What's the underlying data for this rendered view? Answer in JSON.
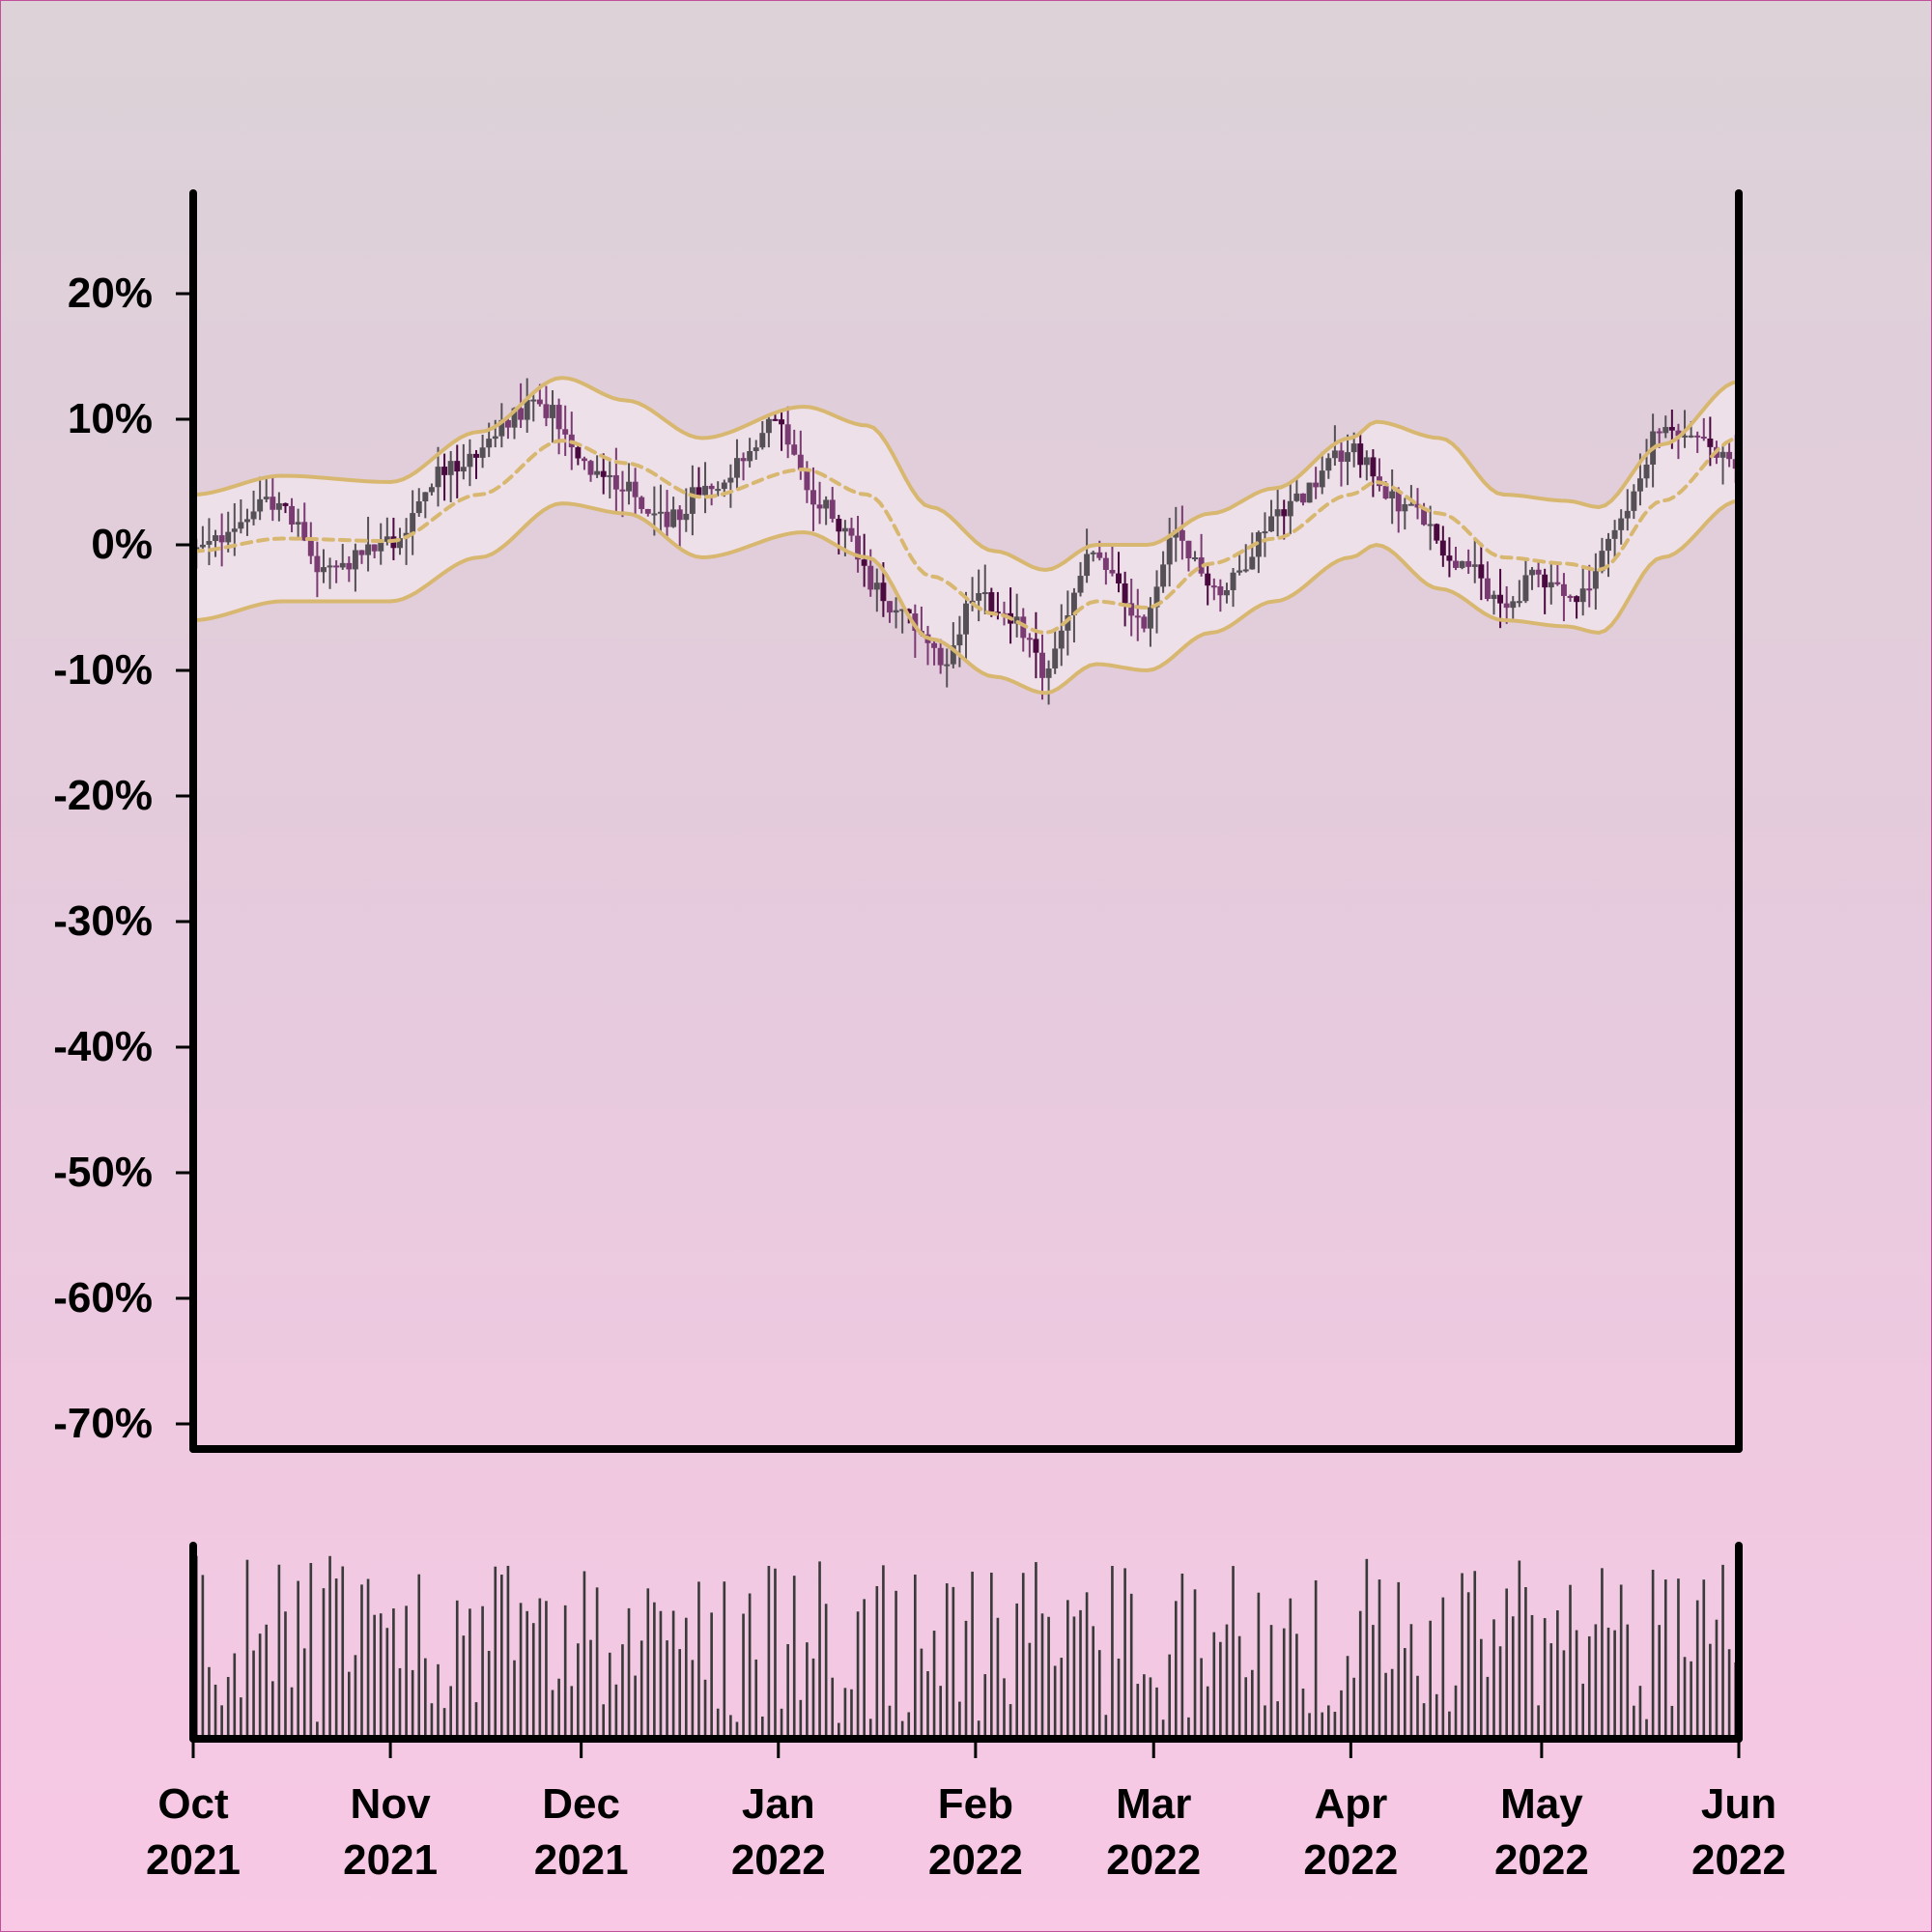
{
  "chart_data": {
    "type": "candlestick",
    "title": "",
    "xlabel": "",
    "ylabel": "",
    "y_unit": "%",
    "ylim": [
      -72,
      28
    ],
    "yticks": [
      20,
      10,
      0,
      -10,
      -20,
      -30,
      -40,
      -50,
      -60,
      -70
    ],
    "ytick_labels": [
      "20%",
      "10%",
      "0%",
      "-10%",
      "-20%",
      "-30%",
      "-40%",
      "-50%",
      "-60%",
      "-70%"
    ],
    "x_range": [
      "2021-10-01",
      "2022-06-01"
    ],
    "xticks": [
      {
        "date": "2021-10-01",
        "month": "Oct",
        "year": "2021"
      },
      {
        "date": "2021-11-01",
        "month": "Nov",
        "year": "2021"
      },
      {
        "date": "2021-12-01",
        "month": "Dec",
        "year": "2021"
      },
      {
        "date": "2022-01-01",
        "month": "Jan",
        "year": "2022"
      },
      {
        "date": "2022-02-01",
        "month": "Feb",
        "year": "2022"
      },
      {
        "date": "2022-03-01",
        "month": "Mar",
        "year": "2022"
      },
      {
        "date": "2022-04-01",
        "month": "Apr",
        "year": "2022"
      },
      {
        "date": "2022-05-01",
        "month": "May",
        "year": "2022"
      },
      {
        "date": "2022-06-01",
        "month": "Jun",
        "year": "2022"
      }
    ],
    "price_anchors": [
      {
        "date": "2021-10-01",
        "value": -0.5
      },
      {
        "date": "2021-10-15",
        "value": 3.5
      },
      {
        "date": "2021-10-22",
        "value": -2.0
      },
      {
        "date": "2021-11-01",
        "value": 0.0
      },
      {
        "date": "2021-11-10",
        "value": 6.0
      },
      {
        "date": "2021-11-25",
        "value": 11.0
      },
      {
        "date": "2021-12-05",
        "value": 5.5
      },
      {
        "date": "2021-12-15",
        "value": 2.0
      },
      {
        "date": "2021-12-22",
        "value": 5.0
      },
      {
        "date": "2022-01-01",
        "value": 9.5
      },
      {
        "date": "2022-01-08",
        "value": 3.0
      },
      {
        "date": "2022-01-20",
        "value": -5.0
      },
      {
        "date": "2022-01-28",
        "value": -9.0
      },
      {
        "date": "2022-02-01",
        "value": -4.0
      },
      {
        "date": "2022-02-08",
        "value": -6.0
      },
      {
        "date": "2022-02-12",
        "value": -10.0
      },
      {
        "date": "2022-02-20",
        "value": -1.0
      },
      {
        "date": "2022-02-28",
        "value": -6.0
      },
      {
        "date": "2022-03-05",
        "value": 0.5
      },
      {
        "date": "2022-03-12",
        "value": -3.5
      },
      {
        "date": "2022-03-22",
        "value": 3.0
      },
      {
        "date": "2022-04-01",
        "value": 7.5
      },
      {
        "date": "2022-04-10",
        "value": 3.0
      },
      {
        "date": "2022-04-20",
        "value": -2.0
      },
      {
        "date": "2022-04-25",
        "value": -5.0
      },
      {
        "date": "2022-05-01",
        "value": -2.5
      },
      {
        "date": "2022-05-07",
        "value": -4.5
      },
      {
        "date": "2022-05-14",
        "value": 2.0
      },
      {
        "date": "2022-05-20",
        "value": 9.0
      },
      {
        "date": "2022-05-25",
        "value": 9.5
      },
      {
        "date": "2022-06-01",
        "value": 6.0
      }
    ],
    "bollinger_bands": {
      "middle_style": "dashed",
      "middle": [
        {
          "date": "2021-10-01",
          "value": -0.5
        },
        {
          "date": "2021-10-15",
          "value": 0.5
        },
        {
          "date": "2021-11-01",
          "value": 0.3
        },
        {
          "date": "2021-11-15",
          "value": 4.0
        },
        {
          "date": "2021-11-28",
          "value": 8.3
        },
        {
          "date": "2021-12-08",
          "value": 6.5
        },
        {
          "date": "2021-12-20",
          "value": 3.8
        },
        {
          "date": "2022-01-05",
          "value": 6.0
        },
        {
          "date": "2022-01-15",
          "value": 4.0
        },
        {
          "date": "2022-01-25",
          "value": -2.5
        },
        {
          "date": "2022-02-04",
          "value": -5.5
        },
        {
          "date": "2022-02-12",
          "value": -7.0
        },
        {
          "date": "2022-02-20",
          "value": -4.5
        },
        {
          "date": "2022-02-28",
          "value": -5.0
        },
        {
          "date": "2022-03-10",
          "value": -1.5
        },
        {
          "date": "2022-03-20",
          "value": 0.5
        },
        {
          "date": "2022-04-01",
          "value": 4.0
        },
        {
          "date": "2022-04-05",
          "value": 5.0
        },
        {
          "date": "2022-04-15",
          "value": 2.5
        },
        {
          "date": "2022-04-25",
          "value": -1.0
        },
        {
          "date": "2022-05-05",
          "value": -1.5
        },
        {
          "date": "2022-05-10",
          "value": -2.0
        },
        {
          "date": "2022-05-20",
          "value": 3.5
        },
        {
          "date": "2022-06-01",
          "value": 8.5
        }
      ],
      "upper": [
        {
          "date": "2021-10-01",
          "value": 4.0
        },
        {
          "date": "2021-10-15",
          "value": 5.5
        },
        {
          "date": "2021-11-01",
          "value": 5.0
        },
        {
          "date": "2021-11-15",
          "value": 9.0
        },
        {
          "date": "2021-11-28",
          "value": 13.3
        },
        {
          "date": "2021-12-08",
          "value": 11.5
        },
        {
          "date": "2021-12-20",
          "value": 8.5
        },
        {
          "date": "2022-01-05",
          "value": 11.0
        },
        {
          "date": "2022-01-15",
          "value": 9.5
        },
        {
          "date": "2022-01-25",
          "value": 3.0
        },
        {
          "date": "2022-02-04",
          "value": -0.5
        },
        {
          "date": "2022-02-12",
          "value": -2.0
        },
        {
          "date": "2022-02-20",
          "value": 0.0
        },
        {
          "date": "2022-02-28",
          "value": 0.0
        },
        {
          "date": "2022-03-10",
          "value": 2.5
        },
        {
          "date": "2022-03-20",
          "value": 4.5
        },
        {
          "date": "2022-04-01",
          "value": 8.5
        },
        {
          "date": "2022-04-05",
          "value": 9.8
        },
        {
          "date": "2022-04-15",
          "value": 8.5
        },
        {
          "date": "2022-04-25",
          "value": 4.0
        },
        {
          "date": "2022-05-05",
          "value": 3.5
        },
        {
          "date": "2022-05-10",
          "value": 3.0
        },
        {
          "date": "2022-05-20",
          "value": 8.0
        },
        {
          "date": "2022-06-01",
          "value": 13.0
        }
      ],
      "lower": [
        {
          "date": "2021-10-01",
          "value": -6.0
        },
        {
          "date": "2021-10-15",
          "value": -4.5
        },
        {
          "date": "2021-11-01",
          "value": -4.5
        },
        {
          "date": "2021-11-15",
          "value": -1.0
        },
        {
          "date": "2021-11-28",
          "value": 3.3
        },
        {
          "date": "2021-12-08",
          "value": 2.5
        },
        {
          "date": "2021-12-20",
          "value": -1.0
        },
        {
          "date": "2022-01-05",
          "value": 1.0
        },
        {
          "date": "2022-01-15",
          "value": -1.0
        },
        {
          "date": "2022-01-25",
          "value": -7.5
        },
        {
          "date": "2022-02-04",
          "value": -10.5
        },
        {
          "date": "2022-02-12",
          "value": -11.8
        },
        {
          "date": "2022-02-20",
          "value": -9.5
        },
        {
          "date": "2022-02-28",
          "value": -10.0
        },
        {
          "date": "2022-03-10",
          "value": -7.0
        },
        {
          "date": "2022-03-20",
          "value": -4.5
        },
        {
          "date": "2022-04-01",
          "value": -1.0
        },
        {
          "date": "2022-04-05",
          "value": 0.0
        },
        {
          "date": "2022-04-15",
          "value": -3.5
        },
        {
          "date": "2022-04-25",
          "value": -6.0
        },
        {
          "date": "2022-05-05",
          "value": -6.5
        },
        {
          "date": "2022-05-10",
          "value": -7.0
        },
        {
          "date": "2022-05-20",
          "value": -1.0
        },
        {
          "date": "2022-06-01",
          "value": 3.5
        }
      ]
    },
    "volume_panel": {
      "axis_labels": "none",
      "ylim": [
        0,
        1
      ]
    },
    "colors": {
      "up_candle": "#555056",
      "down_candle": "#7a3a72",
      "dark_candle": "#4a0a40",
      "band_line": "#d8b870",
      "band_fill": "#f2e6ee",
      "volume_bar": "#3a3a3a",
      "axis": "#000000"
    }
  }
}
